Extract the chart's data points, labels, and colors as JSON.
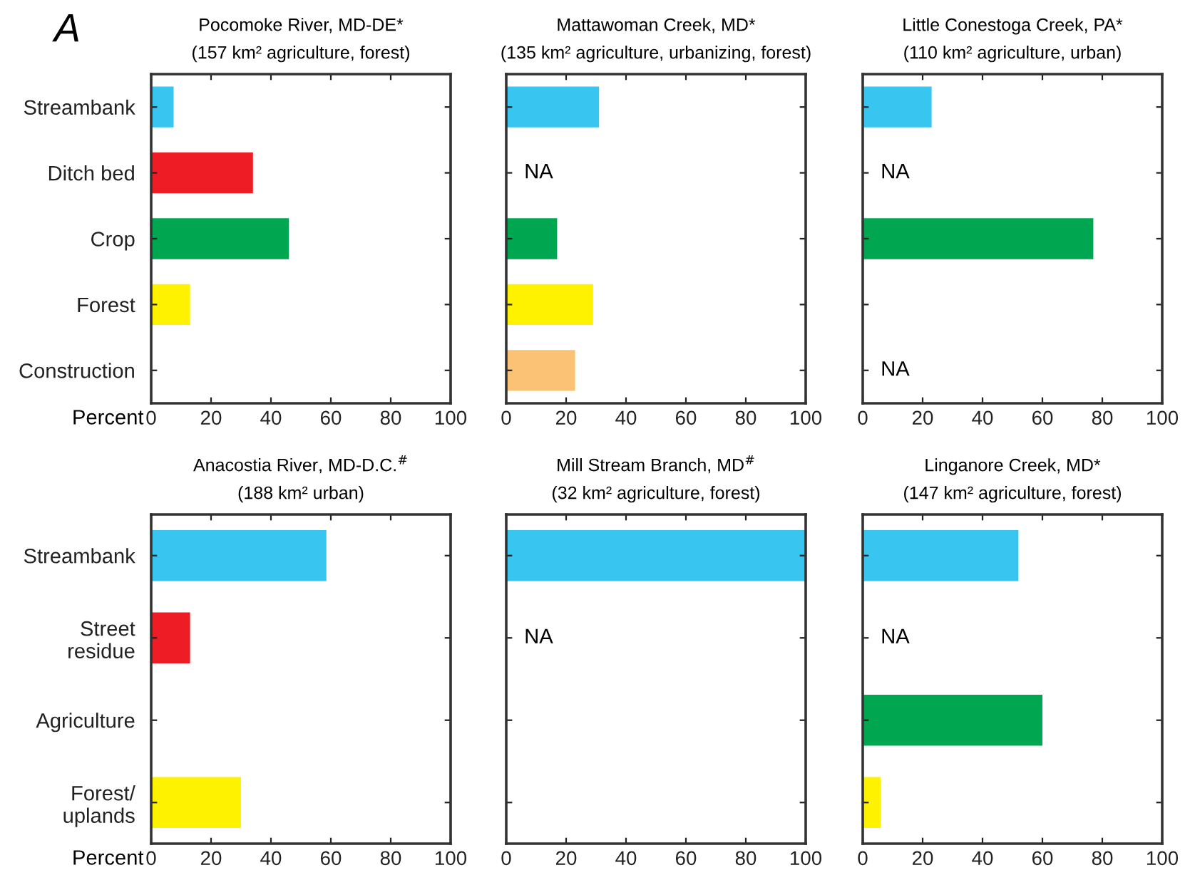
{
  "chart_data": [
    {
      "type": "bar",
      "orientation": "horizontal",
      "title": "Pocomoke River, MD-DE*",
      "subtitle": "(157 km² agriculture, forest)",
      "xlabel": "Percent",
      "categories": [
        "Streambank",
        "Ditch bed",
        "Crop",
        "Forest",
        "Construction"
      ],
      "values": [
        7.5,
        34,
        46,
        13,
        null
      ],
      "colors": [
        "#38c5f0",
        "#ee1c25",
        "#00a650",
        "#fff200",
        "#fbc276"
      ],
      "xlim": [
        0,
        100
      ],
      "xticks": [
        0,
        20,
        40,
        60,
        80,
        100
      ],
      "grid": false,
      "annotations": [
        "A"
      ]
    },
    {
      "type": "bar",
      "orientation": "horizontal",
      "title": "Mattawoman Creek, MD*",
      "subtitle": "(135 km² agriculture, urbanizing, forest)",
      "categories": [
        null,
        null,
        null,
        null,
        null
      ],
      "values": [
        31,
        null,
        17,
        29,
        23
      ],
      "colors": [
        "#38c5f0",
        "#ee1c25",
        "#00a650",
        "#fff200",
        "#fbc276"
      ],
      "xlim": [
        0,
        100
      ],
      "xticks": [
        0,
        20,
        40,
        60,
        80,
        100
      ],
      "grid": false,
      "tick_labels": "x",
      "value_labels": [
        null,
        "NA",
        null,
        null,
        null
      ]
    },
    {
      "type": "bar",
      "orientation": "horizontal",
      "title": "Little Conestoga Creek, PA*",
      "subtitle": "(110 km² agriculture, urban)",
      "categories": [
        null,
        null,
        null,
        null,
        null
      ],
      "values": [
        23,
        null,
        77,
        null,
        null
      ],
      "colors": [
        "#38c5f0",
        "#ee1c25",
        "#00a650",
        "#fff200",
        "#fbc276"
      ],
      "xlim": [
        0,
        100
      ],
      "xticks": [
        0,
        20,
        40,
        60,
        80,
        100
      ],
      "grid": false,
      "tick_labels": "x",
      "value_labels": [
        null,
        "NA",
        null,
        null,
        "NA"
      ]
    },
    {
      "type": "bar",
      "orientation": "horizontal",
      "title": "Anacostia River, MD-D.C.$^{#}$",
      "subtitle": "(188 km² urban)",
      "xlabel": "Percent",
      "categories": [
        "Streambank",
        "Street\nresidue",
        "Agriculture",
        "Forest/\nuplands"
      ],
      "values": [
        58.5,
        13,
        null,
        30
      ],
      "colors": [
        "#38c5f0",
        "#ee1c25",
        "#00a650",
        "#fff200"
      ],
      "xlim": [
        0,
        100
      ],
      "xticks": [
        0,
        20,
        40,
        60,
        80,
        100
      ],
      "grid": false
    },
    {
      "type": "bar",
      "orientation": "horizontal",
      "title": "Mill Stream Branch, MD$^{#}$",
      "subtitle": "(32 km² agriculture, forest)",
      "categories": [
        null,
        null,
        null,
        null
      ],
      "values": [
        100,
        null,
        null,
        null
      ],
      "colors": [
        "#38c5f0",
        "#ee1c25",
        "#00a650",
        "#fff200"
      ],
      "xlim": [
        0,
        100
      ],
      "xticks": [
        0,
        20,
        40,
        60,
        80,
        100
      ],
      "grid": false,
      "tick_labels": "x",
      "value_labels": [
        null,
        "NA",
        null,
        null
      ]
    },
    {
      "type": "bar",
      "orientation": "horizontal",
      "title": "Linganore Creek, MD*",
      "subtitle": "(147 km² agriculture, forest)",
      "categories": [
        null,
        null,
        null,
        null
      ],
      "values": [
        52,
        null,
        60,
        6
      ],
      "colors": [
        "#38c5f0",
        "#ee1c25",
        "#00a650",
        "#fff200"
      ],
      "xlim": [
        0,
        100
      ],
      "xticks": [
        0,
        20,
        40,
        60,
        80,
        100
      ],
      "grid": false,
      "tick_labels": "x",
      "value_labels": [
        null,
        "NA",
        null,
        null
      ]
    }
  ]
}
